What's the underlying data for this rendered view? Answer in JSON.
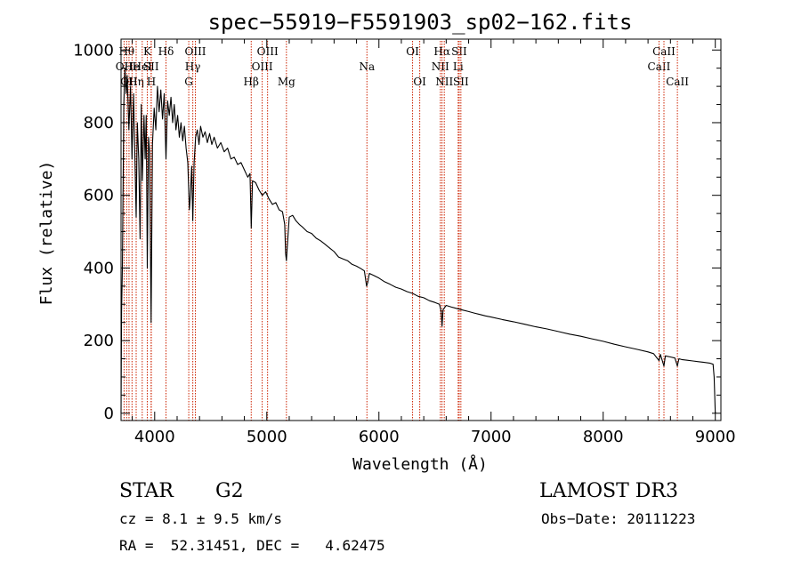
{
  "chart_data": {
    "type": "line",
    "title": "spec−55919−F5591903_sp02−162.fits",
    "xlabel": "Wavelength (Å)",
    "ylabel": "Flux (relative)",
    "xlim": [
      3700,
      9050
    ],
    "ylim": [
      -20,
      1030
    ],
    "x_ticks": [
      4000,
      5000,
      6000,
      7000,
      8000,
      9000
    ],
    "y_ticks": [
      0,
      200,
      400,
      600,
      800,
      1000
    ],
    "line_color": "#000000",
    "marker_color": "#cc2200",
    "series": [
      {
        "name": "spectrum",
        "points": [
          [
            3700,
            0
          ],
          [
            3705,
            280
          ],
          [
            3712,
            400
          ],
          [
            3718,
            620
          ],
          [
            3725,
            850
          ],
          [
            3735,
            950
          ],
          [
            3745,
            880
          ],
          [
            3755,
            930
          ],
          [
            3770,
            780
          ],
          [
            3785,
            900
          ],
          [
            3798,
            700
          ],
          [
            3812,
            880
          ],
          [
            3825,
            690
          ],
          [
            3835,
            540
          ],
          [
            3845,
            800
          ],
          [
            3858,
            700
          ],
          [
            3870,
            480
          ],
          [
            3880,
            850
          ],
          [
            3890,
            640
          ],
          [
            3905,
            820
          ],
          [
            3915,
            700
          ],
          [
            3925,
            820
          ],
          [
            3934,
            400
          ],
          [
            3945,
            760
          ],
          [
            3955,
            720
          ],
          [
            3968,
            250
          ],
          [
            3980,
            740
          ],
          [
            3995,
            840
          ],
          [
            4010,
            780
          ],
          [
            4025,
            900
          ],
          [
            4040,
            830
          ],
          [
            4055,
            890
          ],
          [
            4070,
            810
          ],
          [
            4085,
            880
          ],
          [
            4101,
            700
          ],
          [
            4115,
            860
          ],
          [
            4130,
            820
          ],
          [
            4145,
            870
          ],
          [
            4160,
            800
          ],
          [
            4175,
            850
          ],
          [
            4190,
            780
          ],
          [
            4205,
            820
          ],
          [
            4220,
            760
          ],
          [
            4235,
            800
          ],
          [
            4250,
            750
          ],
          [
            4265,
            790
          ],
          [
            4280,
            730
          ],
          [
            4295,
            690
          ],
          [
            4310,
            560
          ],
          [
            4318,
            600
          ],
          [
            4330,
            680
          ],
          [
            4340,
            530
          ],
          [
            4352,
            690
          ],
          [
            4365,
            760
          ],
          [
            4380,
            780
          ],
          [
            4395,
            740
          ],
          [
            4410,
            790
          ],
          [
            4430,
            760
          ],
          [
            4450,
            775
          ],
          [
            4470,
            745
          ],
          [
            4490,
            770
          ],
          [
            4510,
            740
          ],
          [
            4530,
            760
          ],
          [
            4560,
            730
          ],
          [
            4590,
            745
          ],
          [
            4620,
            720
          ],
          [
            4650,
            730
          ],
          [
            4680,
            700
          ],
          [
            4710,
            705
          ],
          [
            4740,
            685
          ],
          [
            4770,
            690
          ],
          [
            4800,
            670
          ],
          [
            4830,
            650
          ],
          [
            4850,
            660
          ],
          [
            4861,
            510
          ],
          [
            4872,
            640
          ],
          [
            4900,
            635
          ],
          [
            4930,
            615
          ],
          [
            4960,
            600
          ],
          [
            4990,
            610
          ],
          [
            5020,
            590
          ],
          [
            5050,
            575
          ],
          [
            5080,
            580
          ],
          [
            5110,
            560
          ],
          [
            5140,
            555
          ],
          [
            5160,
            520
          ],
          [
            5168,
            440
          ],
          [
            5175,
            420
          ],
          [
            5185,
            470
          ],
          [
            5200,
            540
          ],
          [
            5230,
            545
          ],
          [
            5260,
            530
          ],
          [
            5290,
            520
          ],
          [
            5320,
            512
          ],
          [
            5360,
            500
          ],
          [
            5400,
            495
          ],
          [
            5440,
            482
          ],
          [
            5480,
            475
          ],
          [
            5520,
            465
          ],
          [
            5560,
            455
          ],
          [
            5600,
            445
          ],
          [
            5640,
            430
          ],
          [
            5680,
            425
          ],
          [
            5720,
            420
          ],
          [
            5760,
            410
          ],
          [
            5800,
            405
          ],
          [
            5840,
            398
          ],
          [
            5870,
            392
          ],
          [
            5890,
            350
          ],
          [
            5900,
            360
          ],
          [
            5915,
            385
          ],
          [
            5950,
            380
          ],
          [
            6000,
            372
          ],
          [
            6050,
            362
          ],
          [
            6100,
            355
          ],
          [
            6150,
            347
          ],
          [
            6200,
            342
          ],
          [
            6250,
            335
          ],
          [
            6300,
            330
          ],
          [
            6350,
            322
          ],
          [
            6400,
            318
          ],
          [
            6450,
            310
          ],
          [
            6500,
            305
          ],
          [
            6540,
            300
          ],
          [
            6555,
            280
          ],
          [
            6563,
            240
          ],
          [
            6572,
            285
          ],
          [
            6600,
            297
          ],
          [
            6650,
            292
          ],
          [
            6700,
            288
          ],
          [
            6750,
            284
          ],
          [
            6800,
            280
          ],
          [
            6850,
            276
          ],
          [
            6900,
            272
          ],
          [
            6950,
            268
          ],
          [
            7000,
            265
          ],
          [
            7100,
            258
          ],
          [
            7200,
            252
          ],
          [
            7300,
            245
          ],
          [
            7400,
            238
          ],
          [
            7500,
            232
          ],
          [
            7600,
            225
          ],
          [
            7700,
            218
          ],
          [
            7800,
            212
          ],
          [
            7900,
            205
          ],
          [
            8000,
            198
          ],
          [
            8100,
            190
          ],
          [
            8200,
            183
          ],
          [
            8300,
            176
          ],
          [
            8400,
            169
          ],
          [
            8450,
            164
          ],
          [
            8498,
            145
          ],
          [
            8510,
            162
          ],
          [
            8542,
            130
          ],
          [
            8555,
            158
          ],
          [
            8600,
            155
          ],
          [
            8640,
            152
          ],
          [
            8662,
            130
          ],
          [
            8675,
            150
          ],
          [
            8700,
            148
          ],
          [
            8750,
            146
          ],
          [
            8800,
            144
          ],
          [
            8850,
            142
          ],
          [
            8900,
            140
          ],
          [
            8950,
            138
          ],
          [
            8980,
            135
          ],
          [
            8990,
            100
          ],
          [
            9000,
            0
          ]
        ]
      }
    ],
    "line_markers": [
      {
        "w": 3727,
        "row": 1,
        "label": "OII"
      },
      {
        "w": 3750,
        "row": 0,
        "label": "Hθ"
      },
      {
        "w": 3771,
        "row": 2,
        "label": "OII"
      },
      {
        "w": 3798,
        "row": 1,
        "label": "He"
      },
      {
        "w": 3835,
        "row": 2,
        "label": "Hη"
      },
      {
        "w": 3889,
        "row": 1,
        "label": "HeI"
      },
      {
        "w": 3934,
        "row": 0,
        "label": "K"
      },
      {
        "w": 3968,
        "row": 1,
        "label": "SII"
      },
      {
        "w": 3970,
        "row": 2,
        "label": "H"
      },
      {
        "w": 4101,
        "row": 0,
        "label": "Hδ"
      },
      {
        "w": 4304,
        "row": 2,
        "label": "G"
      },
      {
        "w": 4340,
        "row": 1,
        "label": "Hγ"
      },
      {
        "w": 4363,
        "row": 0,
        "label": "OIII"
      },
      {
        "w": 4861,
        "row": 2,
        "label": "Hβ"
      },
      {
        "w": 4959,
        "row": 1,
        "label": "OIII"
      },
      {
        "w": 5007,
        "row": 0,
        "label": "OIII"
      },
      {
        "w": 5175,
        "row": 2,
        "label": "Mg"
      },
      {
        "w": 5893,
        "row": 1,
        "label": "Na"
      },
      {
        "w": 6300,
        "row": 0,
        "label": "OI"
      },
      {
        "w": 6364,
        "row": 2,
        "label": "OI"
      },
      {
        "w": 6548,
        "row": 1,
        "label": "NII"
      },
      {
        "w": 6563,
        "row": 0,
        "label": "Hα"
      },
      {
        "w": 6583,
        "row": 2,
        "label": "NII"
      },
      {
        "w": 6707,
        "row": 1,
        "label": "Li"
      },
      {
        "w": 6716,
        "row": 0,
        "label": "SII"
      },
      {
        "w": 6731,
        "row": 2,
        "label": "SII"
      },
      {
        "w": 8498,
        "row": 1,
        "label": "CaII"
      },
      {
        "w": 8542,
        "row": 0,
        "label": "CaII"
      },
      {
        "w": 8662,
        "row": 2,
        "label": "CaII"
      }
    ]
  },
  "info": {
    "object_class": "STAR",
    "subclass": "G2",
    "survey": "LAMOST DR3",
    "redshift": "cz = 8.1 ± 9.5 km/s",
    "obs_date": "Obs−Date: 20111223",
    "coords": "RA =  52.31451, DEC =   4.62475"
  }
}
